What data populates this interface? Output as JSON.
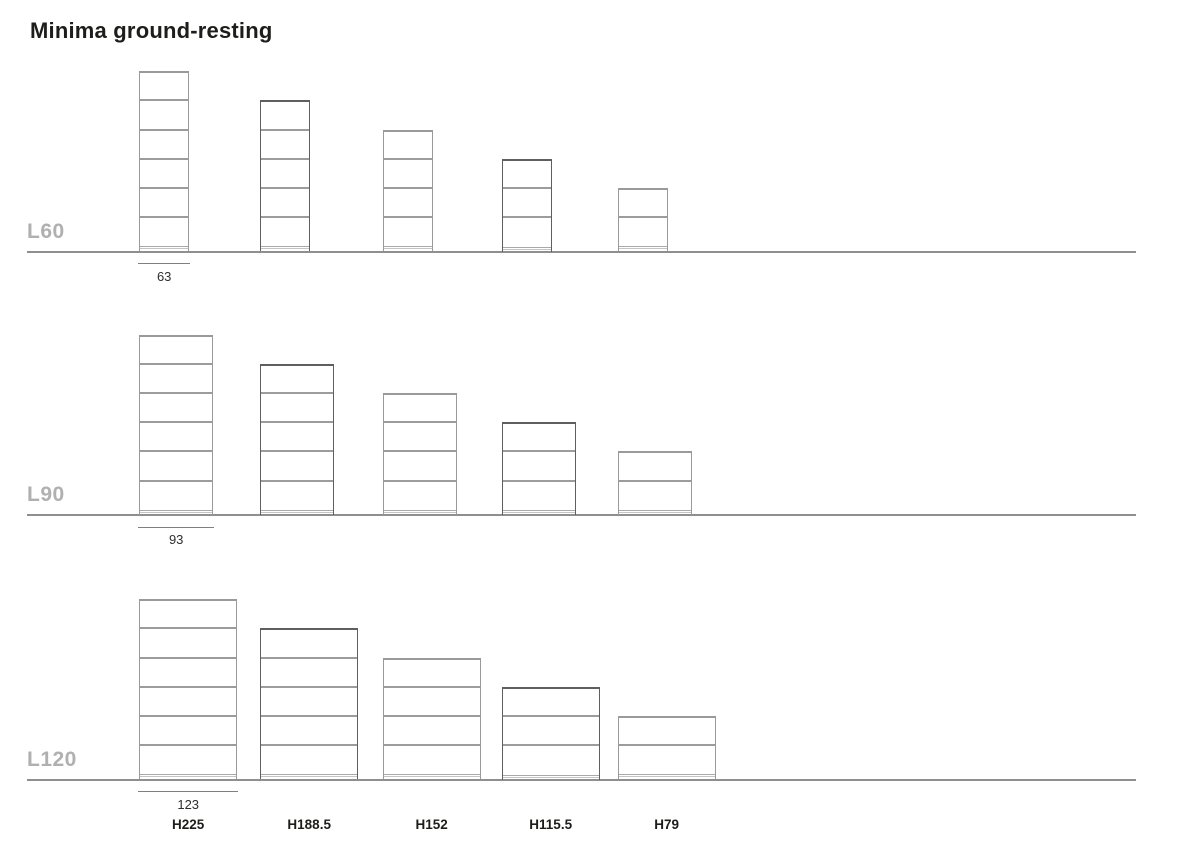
{
  "title": "Minima ground-resting",
  "rows": [
    {
      "label": "L60",
      "length_cm": 63,
      "dim_label": "63"
    },
    {
      "label": "L90",
      "length_cm": 93,
      "dim_label": "93"
    },
    {
      "label": "L120",
      "length_cm": 123,
      "dim_label": "123"
    }
  ],
  "columns": [
    {
      "label": "H225",
      "height_cm": 225,
      "shelf_compartments": 6
    },
    {
      "label": "H188.5",
      "height_cm": 188.5,
      "shelf_compartments": 5
    },
    {
      "label": "H152",
      "height_cm": 152,
      "shelf_compartments": 4
    },
    {
      "label": "H115.5",
      "height_cm": 115.5,
      "shelf_compartments": 3
    },
    {
      "label": "H79",
      "height_cm": 79,
      "shelf_compartments": 2
    }
  ],
  "colors": {
    "title_text": "#1d1d1b",
    "row_label_text": "#b0b0b0",
    "baseline": "#8f8f8f",
    "unit_outline": "#9a9a9a",
    "unit_outline_dark": "#5f5f5f",
    "shelf_line": "#9c9c9c",
    "plinth_line": "#a9a9a9",
    "plinth_line_light": "#c4c4c4",
    "dimension_line": "#7f7f7f",
    "dimension_text": "#2e2e2e",
    "footer_text": "#1d1d1b"
  }
}
